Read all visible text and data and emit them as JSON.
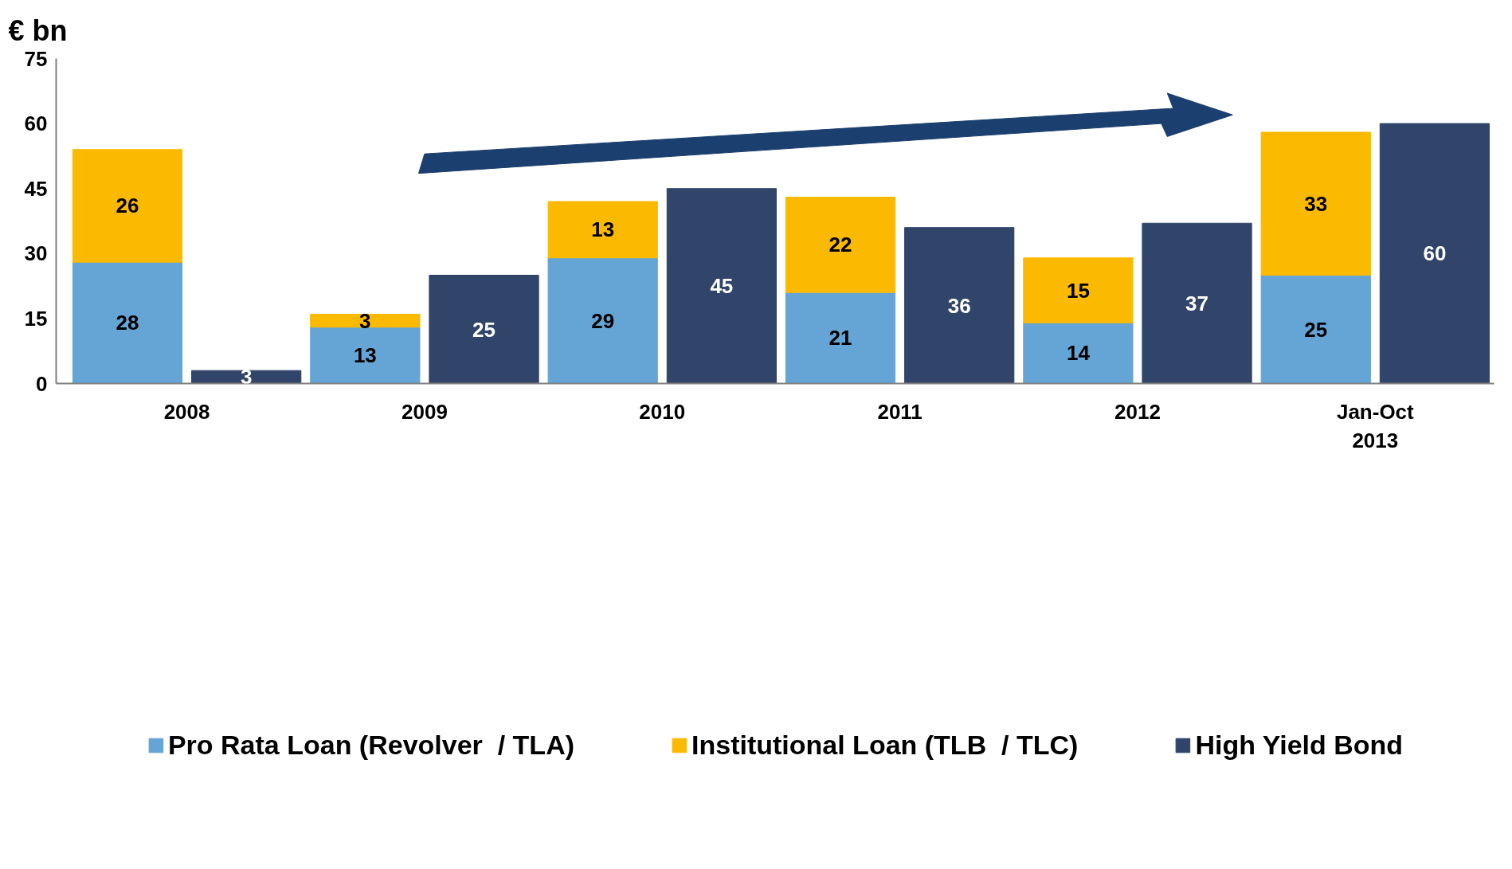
{
  "chart_data": {
    "type": "bar",
    "ylabel": "€ bn",
    "stacked": true,
    "data_labels": true,
    "legend": "bottom",
    "grid": false,
    "categories": [
      "2008",
      null,
      "2009",
      null,
      "2010",
      null,
      "2011",
      null,
      "2012",
      null,
      "Jan-Oct\n2013",
      null
    ],
    "ylim": [
      0,
      75
    ],
    "yticks": [
      0,
      15,
      30,
      45,
      60,
      75
    ],
    "series": [
      {
        "name": "Pro Rata Loan (Revolver  / TLA)",
        "color": "#64a5d5",
        "values": [
          28,
          null,
          13,
          null,
          29,
          null,
          21,
          null,
          14,
          null,
          25,
          null
        ]
      },
      {
        "name": "Institutional Loan (TLB  / TLC)",
        "color": "#fbb900",
        "values": [
          26,
          null,
          3,
          null,
          13,
          null,
          22,
          null,
          15,
          null,
          33,
          null
        ]
      },
      {
        "name": "High Yield Bond",
        "color": "#31456a",
        "values": [
          null,
          3,
          null,
          25,
          null,
          45,
          null,
          36,
          null,
          37,
          null,
          60
        ]
      }
    ]
  }
}
